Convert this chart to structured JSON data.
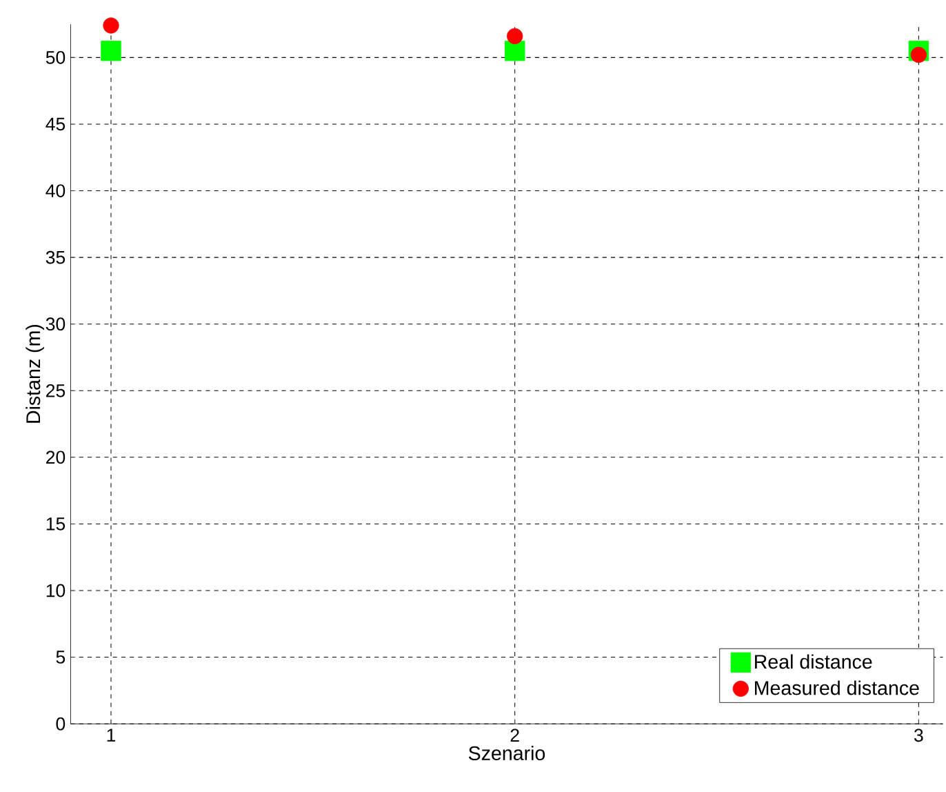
{
  "chart_data": {
    "type": "scatter",
    "xlabel": "Szenario",
    "ylabel": "Distanz (m)",
    "x": [
      1,
      2,
      3
    ],
    "series": [
      {
        "name": "Real distance",
        "color": "#00ff00",
        "marker": "square",
        "values": [
          50.5,
          50.5,
          50.5
        ]
      },
      {
        "name": "Measured distance",
        "color": "#ff0000",
        "marker": "circle",
        "values": [
          52.4,
          51.6,
          50.2
        ]
      }
    ],
    "xlim": [
      0.9,
      3.06
    ],
    "ylim": [
      0,
      52.5
    ],
    "xticks": [
      1,
      2,
      3
    ],
    "yticks": [
      0,
      5,
      10,
      15,
      20,
      25,
      30,
      35,
      40,
      45,
      50
    ],
    "grid": true,
    "legend": "bottom right"
  }
}
